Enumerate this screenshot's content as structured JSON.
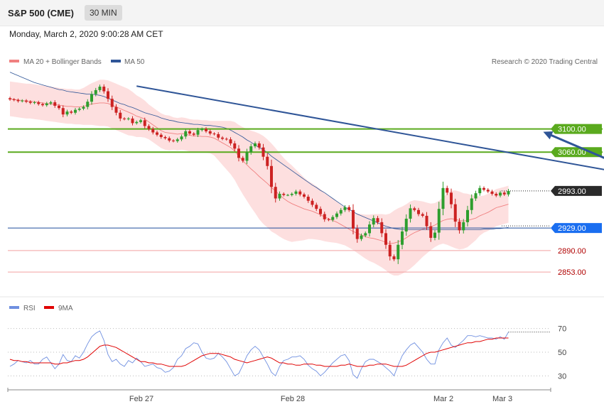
{
  "header": {
    "title": "S&P 500 (CME)",
    "interval": "30 MIN"
  },
  "datetime": "Monday, March 2, 2020 9:00:28 AM CET",
  "legend": {
    "ma20": "MA 20 + Bollinger Bands",
    "ma50": "MA 50",
    "credit": "Research © 2020 Trading Central"
  },
  "rsi_legend": {
    "rsi": "RSI",
    "ma9": "9MA"
  },
  "colors": {
    "bull": "#2e9e2e",
    "bear": "#cc2222",
    "band": "#fcd2d2",
    "ma20": "#f08080",
    "ma50": "#2f5597",
    "resistance": "#5aaa1e",
    "support": "#f2a0a0",
    "pivot": "#1f4e9c",
    "trend": "#2f5597",
    "rsi": "#6f8fe0",
    "rsi_ma": "#e00000"
  },
  "chart_data": [
    {
      "type": "candlestick",
      "title": "S&P 500 (CME)",
      "ylim": [
        2820,
        3200
      ],
      "x_labels": [
        "Feb 27",
        "Feb 28",
        "Mar 2",
        "Mar 3"
      ],
      "levels": [
        {
          "value": 3100,
          "label": "3100.00",
          "kind": "resistance"
        },
        {
          "value": 3060,
          "label": "3060.00",
          "kind": "resistance"
        },
        {
          "value": 2993,
          "label": "2993.00",
          "kind": "last"
        },
        {
          "value": 2929,
          "label": "2929.00",
          "kind": "pivot"
        },
        {
          "value": 2890,
          "label": "2890.00",
          "kind": "support"
        },
        {
          "value": 2853,
          "label": "2853.00",
          "kind": "support"
        }
      ],
      "trendline": [
        [
          31,
          3174
        ],
        [
          162,
          3009
        ]
      ],
      "target_arrow": [
        [
          164,
          2995
        ],
        [
          179,
          3097
        ]
      ],
      "close": [
        3151,
        3150,
        3148,
        3149,
        3147,
        3145,
        3146,
        3143,
        3141,
        3144,
        3146,
        3140,
        3136,
        3125,
        3130,
        3128,
        3133,
        3135,
        3138,
        3147,
        3160,
        3167,
        3173,
        3165,
        3152,
        3138,
        3128,
        3118,
        3117,
        3118,
        3110,
        3112,
        3115,
        3105,
        3100,
        3094,
        3090,
        3086,
        3084,
        3080,
        3079,
        3082,
        3087,
        3096,
        3092,
        3090,
        3098,
        3100,
        3096,
        3092,
        3091,
        3085,
        3083,
        3082,
        3075,
        3066,
        3050,
        3045,
        3060,
        3070,
        3075,
        3068,
        3052,
        3036,
        3000,
        2980,
        2988,
        2986,
        2986,
        2988,
        2992,
        2987,
        2983,
        2976,
        2969,
        2962,
        2953,
        2944,
        2943,
        2948,
        2954,
        2960,
        2965,
        2960,
        2928,
        2910,
        2916,
        2920,
        2935,
        2946,
        2939,
        2920,
        2900,
        2880,
        2875,
        2900,
        2923,
        2945,
        2963,
        2960,
        2953,
        2950,
        2932,
        2912,
        2921,
        2962,
        2998,
        2990,
        2970,
        2940,
        2925,
        2939,
        2960,
        2980,
        2989,
        2998,
        2995,
        2992,
        2988,
        2985,
        2990,
        2987,
        2993
      ],
      "ma20": [
        3152,
        3151,
        3150,
        3149,
        3148,
        3148,
        3147,
        3146,
        3145,
        3144,
        3143,
        3142,
        3141,
        3140,
        3139,
        3139,
        3138,
        3138,
        3139,
        3141,
        3143,
        3144,
        3145,
        3145,
        3144,
        3141,
        3138,
        3135,
        3132,
        3129,
        3126,
        3122,
        3120,
        3117,
        3112,
        3107,
        3102,
        3097,
        3094,
        3093,
        3092,
        3091,
        3092,
        3091,
        3089,
        3088,
        3088,
        3087,
        3087,
        3086,
        3084,
        3080,
        3076,
        3072,
        3068,
        3062,
        3053,
        3045,
        3038,
        3031,
        3025,
        3018,
        3012,
        3006,
        2999,
        2993,
        2986,
        2980,
        2975,
        2971,
        2968,
        2965,
        2962,
        2960,
        2958,
        2955,
        2952,
        2948,
        2945,
        2942,
        2939,
        2935,
        2931,
        2927,
        2923,
        2920,
        2917,
        2914,
        2912,
        2911,
        2909,
        2907,
        2904,
        2902,
        2903,
        2905,
        2908,
        2912,
        2917,
        2921,
        2924,
        2927,
        2929,
        2931,
        2934,
        2938,
        2942,
        2944,
        2945,
        2944,
        2942,
        2941,
        2942,
        2944,
        2946,
        2950,
        2953,
        2956,
        2960,
        2964,
        2966,
        2968,
        2970
      ],
      "ma50": [
        3198,
        3195,
        3192,
        3189,
        3186,
        3183,
        3180,
        3178,
        3176,
        3174,
        3172,
        3170,
        3168,
        3167,
        3165,
        3164,
        3163,
        3162,
        3161,
        3160,
        3160,
        3159,
        3158,
        3156,
        3153,
        3150,
        3147,
        3144,
        3142,
        3139,
        3137,
        3134,
        3131,
        3128,
        3126,
        3124,
        3122,
        3119,
        3117,
        3115,
        3114,
        3112,
        3111,
        3110,
        3109,
        3108,
        3108,
        3107,
        3106,
        3106,
        3105,
        3104,
        3103,
        3101,
        3098,
        3094,
        3090,
        3086,
        3081,
        3077,
        3072,
        3068,
        3064,
        3059,
        3053,
        3048,
        3043,
        3038,
        3033,
        3028,
        3023,
        3018,
        3013,
        3008,
        3003,
        2999,
        2994,
        2990,
        2985,
        2980,
        2975,
        2970,
        2965,
        2961,
        2957,
        2953,
        2950,
        2947,
        2944,
        2941,
        2938,
        2935,
        2932,
        2930,
        2928,
        2927,
        2926,
        2926,
        2926,
        2926,
        2926,
        2926,
        2926,
        2926,
        2926,
        2926,
        2926,
        2926,
        2926,
        2926,
        2926,
        2926,
        2926,
        2926,
        2926,
        2926,
        2927,
        2927,
        2927,
        2928,
        2928,
        2929,
        2930
      ],
      "bb_width": [
        30,
        30,
        30,
        30,
        30,
        30,
        30,
        30,
        30,
        30,
        30,
        30,
        30,
        30,
        30,
        30,
        30,
        30,
        32,
        34,
        36,
        38,
        40,
        40,
        40,
        40,
        40,
        40,
        40,
        40,
        38,
        36,
        34,
        32,
        30,
        30,
        30,
        30,
        30,
        30,
        28,
        28,
        28,
        28,
        28,
        28,
        28,
        28,
        28,
        28,
        30,
        34,
        38,
        42,
        46,
        50,
        54,
        58,
        62,
        66,
        70,
        74,
        76,
        76,
        76,
        74,
        72,
        70,
        68,
        66,
        62,
        58,
        54,
        50,
        48,
        46,
        44,
        42,
        40,
        38,
        36,
        34,
        32,
        32,
        32,
        34,
        36,
        38,
        40,
        42,
        44,
        46,
        48,
        52,
        56,
        58,
        58,
        58,
        58,
        56,
        52,
        48,
        44,
        40,
        38,
        38,
        40,
        44,
        48,
        50,
        50,
        48,
        46,
        42,
        38,
        34,
        32,
        32,
        32,
        32,
        32,
        32,
        32
      ]
    },
    {
      "type": "line",
      "title": "RSI",
      "ylim": [
        20,
        80
      ],
      "ticks": [
        "70",
        "50",
        "30"
      ],
      "series": [
        {
          "name": "RSI",
          "values": [
            38,
            40,
            43,
            42,
            41,
            43,
            40,
            40,
            44,
            46,
            41,
            36,
            40,
            48,
            43,
            42,
            47,
            45,
            50,
            57,
            63,
            66,
            68,
            60,
            48,
            42,
            44,
            40,
            38,
            43,
            41,
            45,
            42,
            38,
            39,
            40,
            37,
            36,
            33,
            34,
            37,
            44,
            47,
            53,
            55,
            58,
            57,
            50,
            45,
            44,
            45,
            49,
            46,
            42,
            36,
            30,
            32,
            39,
            47,
            52,
            55,
            52,
            46,
            40,
            33,
            30,
            38,
            43,
            44,
            46,
            46,
            47,
            44,
            39,
            36,
            34,
            30,
            33,
            37,
            41,
            44,
            47,
            48,
            43,
            31,
            28,
            36,
            42,
            44,
            44,
            42,
            40,
            37,
            34,
            30,
            39,
            47,
            52,
            56,
            58,
            54,
            50,
            44,
            40,
            40,
            52,
            58,
            62,
            56,
            54,
            57,
            60,
            64,
            64,
            63,
            64,
            63,
            62,
            62,
            61,
            63,
            61,
            67
          ]
        },
        {
          "name": "9MA",
          "values": [
            44,
            43,
            43,
            42,
            42,
            41,
            41,
            41,
            41,
            41,
            41,
            40,
            40,
            41,
            41,
            42,
            43,
            43,
            44,
            46,
            49,
            52,
            55,
            56,
            56,
            55,
            54,
            52,
            50,
            48,
            46,
            44,
            42,
            42,
            41,
            41,
            40,
            40,
            39,
            38,
            38,
            38,
            38,
            39,
            41,
            43,
            45,
            47,
            48,
            49,
            49,
            49,
            48,
            47,
            46,
            44,
            43,
            42,
            41,
            42,
            43,
            44,
            45,
            46,
            45,
            43,
            41,
            41,
            40,
            40,
            39,
            39,
            40,
            40,
            40,
            39,
            39,
            38,
            38,
            38,
            38,
            39,
            39,
            40,
            39,
            38,
            38,
            38,
            39,
            39,
            40,
            40,
            40,
            39,
            38,
            38,
            38,
            39,
            41,
            43,
            45,
            47,
            49,
            50,
            50,
            51,
            52,
            53,
            54,
            55,
            56,
            57,
            58,
            58,
            59,
            59,
            60,
            61,
            61,
            62,
            62,
            62,
            62
          ]
        }
      ]
    }
  ]
}
